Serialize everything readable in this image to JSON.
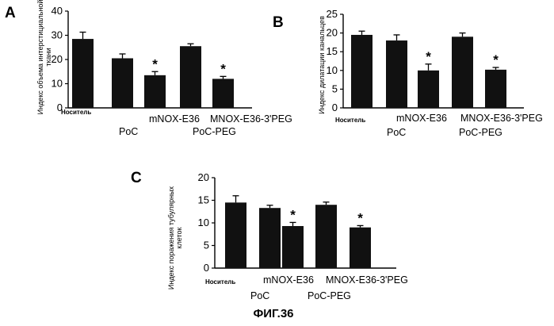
{
  "figure": {
    "caption": "ФИГ.36",
    "panels": [
      {
        "letter": "A",
        "ylabel_lines": [
          "Индекс объема интерстициальной",
          "ткани"
        ]
      },
      {
        "letter": "B",
        "ylabel_lines": [
          "Индекс дилатации канальцев"
        ]
      },
      {
        "letter": "C",
        "ylabel_lines": [
          "Индекс поражения тубулярных",
          "клеток"
        ]
      }
    ],
    "category_labels": [
      {
        "text": "Носитель",
        "row": 0
      },
      {
        "text": "PoC",
        "row": 2
      },
      {
        "text": "mNOX-E36",
        "row": 1
      },
      {
        "text": "PoC-PEG",
        "row": 2
      },
      {
        "text": "MNOX-E36-3'PEG",
        "row": 1
      }
    ]
  },
  "chart_data": [
    {
      "type": "bar",
      "panel": "A",
      "categories": [
        "Носитель",
        "mNOX-E36 PoC",
        "mNOX-E36",
        "mNOX-E36 PoC-PEG",
        "MNOX-E36-3'PEG"
      ],
      "values": [
        28.5,
        20.5,
        13.5,
        25.5,
        12.0
      ],
      "errors": [
        2.8,
        1.8,
        1.5,
        1.0,
        1.0
      ],
      "significant": [
        false,
        false,
        true,
        false,
        true
      ],
      "marker": "*",
      "yticks": [
        0,
        10,
        20,
        30,
        40
      ],
      "ylim": [
        0,
        40
      ],
      "ylabel": "Индекс объема интерстициальной ткани"
    },
    {
      "type": "bar",
      "panel": "B",
      "categories": [
        "Носитель",
        "mNOX-E36 PoC",
        "mNOX-E36",
        "mNOX-E36 PoC-PEG",
        "MNOX-E36-3'PEG"
      ],
      "values": [
        19.5,
        18.0,
        10.0,
        19.0,
        10.2
      ],
      "errors": [
        1.0,
        1.5,
        1.7,
        1.0,
        0.6
      ],
      "significant": [
        false,
        false,
        true,
        false,
        true
      ],
      "marker": "*",
      "yticks": [
        0,
        5,
        10,
        15,
        20,
        25
      ],
      "ylim": [
        0,
        25
      ],
      "ylabel": "Индекс дилатации канальцев"
    },
    {
      "type": "bar",
      "panel": "C",
      "categories": [
        "Носитель",
        "mNOX-E36 PoC",
        "mNOX-E36",
        "mNOX-E36 PoC-PEG",
        "MNOX-E36-3'PEG"
      ],
      "values": [
        14.5,
        13.3,
        9.3,
        14.0,
        9.0
      ],
      "errors": [
        1.5,
        0.6,
        0.8,
        0.6,
        0.4
      ],
      "significant": [
        false,
        false,
        true,
        false,
        true
      ],
      "marker": "*",
      "yticks": [
        0,
        5,
        10,
        15,
        20
      ],
      "ylim": [
        0,
        20
      ],
      "ylabel": "Индекс поражения тубулярных клеток"
    }
  ]
}
